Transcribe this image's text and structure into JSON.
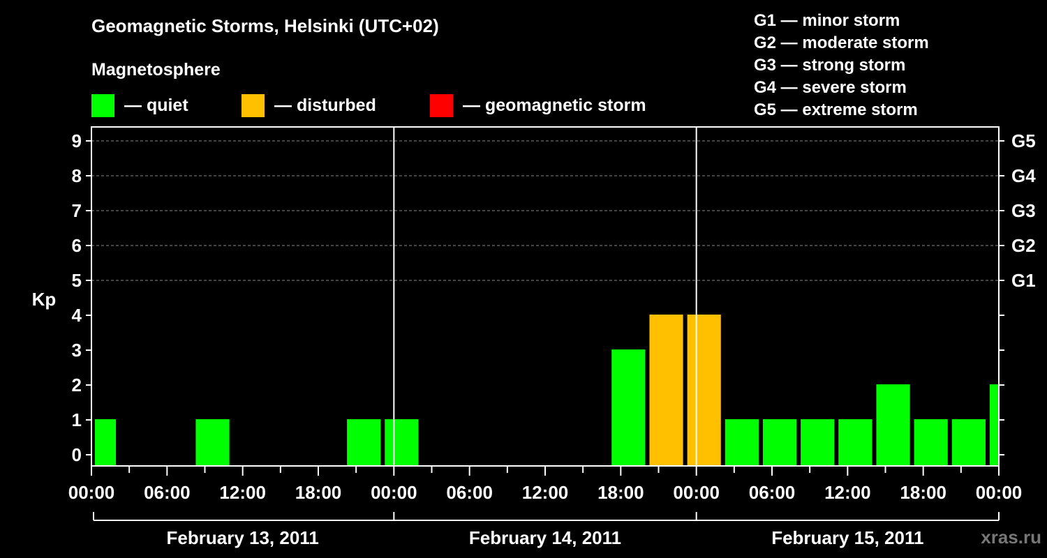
{
  "header": {
    "title": "Geomagnetic Storms, Helsinki (UTC+02)",
    "subtitle": "Magnetosphere"
  },
  "legend": [
    {
      "label": "— quiet",
      "color": "#00ff00"
    },
    {
      "label": "— disturbed",
      "color": "#ffc000"
    },
    {
      "label": "— geomagnetic storm",
      "color": "#ff0000"
    }
  ],
  "g_scale_legend": [
    "G1 — minor storm",
    "G2 — moderate storm",
    "G3 — strong storm",
    "G4 — severe storm",
    "G5 — extreme storm"
  ],
  "watermark": "xras.ru",
  "chart_data": {
    "type": "bar",
    "ylabel": "Kp",
    "ylim": [
      0,
      9
    ],
    "yticks": [
      "0",
      "1",
      "2",
      "3",
      "4",
      "5",
      "6",
      "7",
      "8",
      "9"
    ],
    "right_ticks": [
      {
        "kp": 5,
        "label": "G1"
      },
      {
        "kp": 6,
        "label": "G2"
      },
      {
        "kp": 7,
        "label": "G3"
      },
      {
        "kp": 8,
        "label": "G4"
      },
      {
        "kp": 9,
        "label": "G5"
      }
    ],
    "xticks": [
      "00:00",
      "06:00",
      "12:00",
      "18:00",
      "00:00",
      "06:00",
      "12:00",
      "18:00",
      "00:00",
      "06:00",
      "12:00",
      "18:00",
      "00:00"
    ],
    "days": [
      "February 13, 2011",
      "February 14, 2011",
      "February 15, 2011"
    ],
    "grid": true,
    "bars": [
      {
        "start_hour": 0,
        "end_hour": 2,
        "kp": 1,
        "status": "quiet"
      },
      {
        "start_hour": 8,
        "end_hour": 11,
        "kp": 1,
        "status": "quiet"
      },
      {
        "start_hour": 20,
        "end_hour": 23,
        "kp": 1,
        "status": "quiet"
      },
      {
        "start_hour": 23,
        "end_hour": 26,
        "kp": 1,
        "status": "quiet"
      },
      {
        "start_hour": 41,
        "end_hour": 44,
        "kp": 3,
        "status": "quiet"
      },
      {
        "start_hour": 44,
        "end_hour": 47,
        "kp": 4,
        "status": "disturbed"
      },
      {
        "start_hour": 47,
        "end_hour": 50,
        "kp": 4,
        "status": "disturbed"
      },
      {
        "start_hour": 50,
        "end_hour": 53,
        "kp": 1,
        "status": "quiet"
      },
      {
        "start_hour": 53,
        "end_hour": 56,
        "kp": 1,
        "status": "quiet"
      },
      {
        "start_hour": 56,
        "end_hour": 59,
        "kp": 1,
        "status": "quiet"
      },
      {
        "start_hour": 59,
        "end_hour": 62,
        "kp": 1,
        "status": "quiet"
      },
      {
        "start_hour": 62,
        "end_hour": 65,
        "kp": 2,
        "status": "quiet"
      },
      {
        "start_hour": 65,
        "end_hour": 68,
        "kp": 1,
        "status": "quiet"
      },
      {
        "start_hour": 68,
        "end_hour": 71,
        "kp": 1,
        "status": "quiet"
      },
      {
        "start_hour": 71,
        "end_hour": 72,
        "kp": 2,
        "status": "quiet"
      }
    ],
    "status_colors": {
      "quiet": "#00ff00",
      "disturbed": "#ffc000",
      "storm": "#ff0000"
    }
  }
}
